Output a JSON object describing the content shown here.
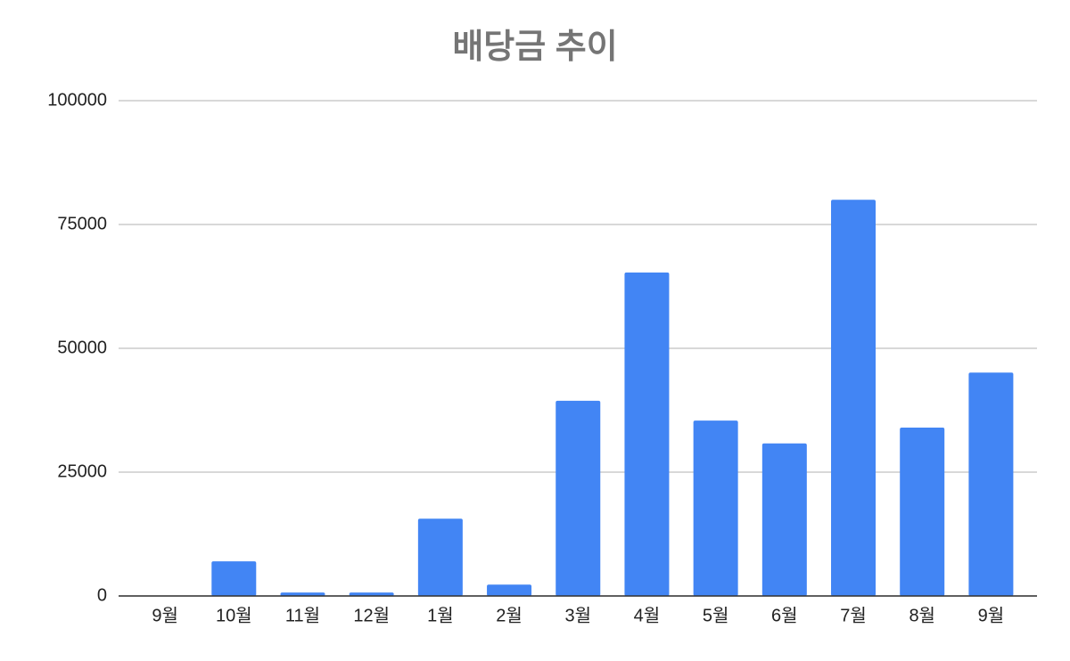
{
  "chart_data": {
    "type": "bar",
    "title": "배당금 추이",
    "categories": [
      "9월",
      "10월",
      "11월",
      "12월",
      "1월",
      "2월",
      "3월",
      "4월",
      "5월",
      "6월",
      "7월",
      "8월",
      "9월"
    ],
    "values": [
      0,
      7000,
      700,
      700,
      15600,
      2300,
      39400,
      65300,
      35400,
      30800,
      80000,
      34000,
      45100
    ],
    "color": "#4285f4",
    "ylim": [
      0,
      100000
    ],
    "yticks": [
      0,
      25000,
      50000,
      75000,
      100000
    ],
    "grid": true
  }
}
